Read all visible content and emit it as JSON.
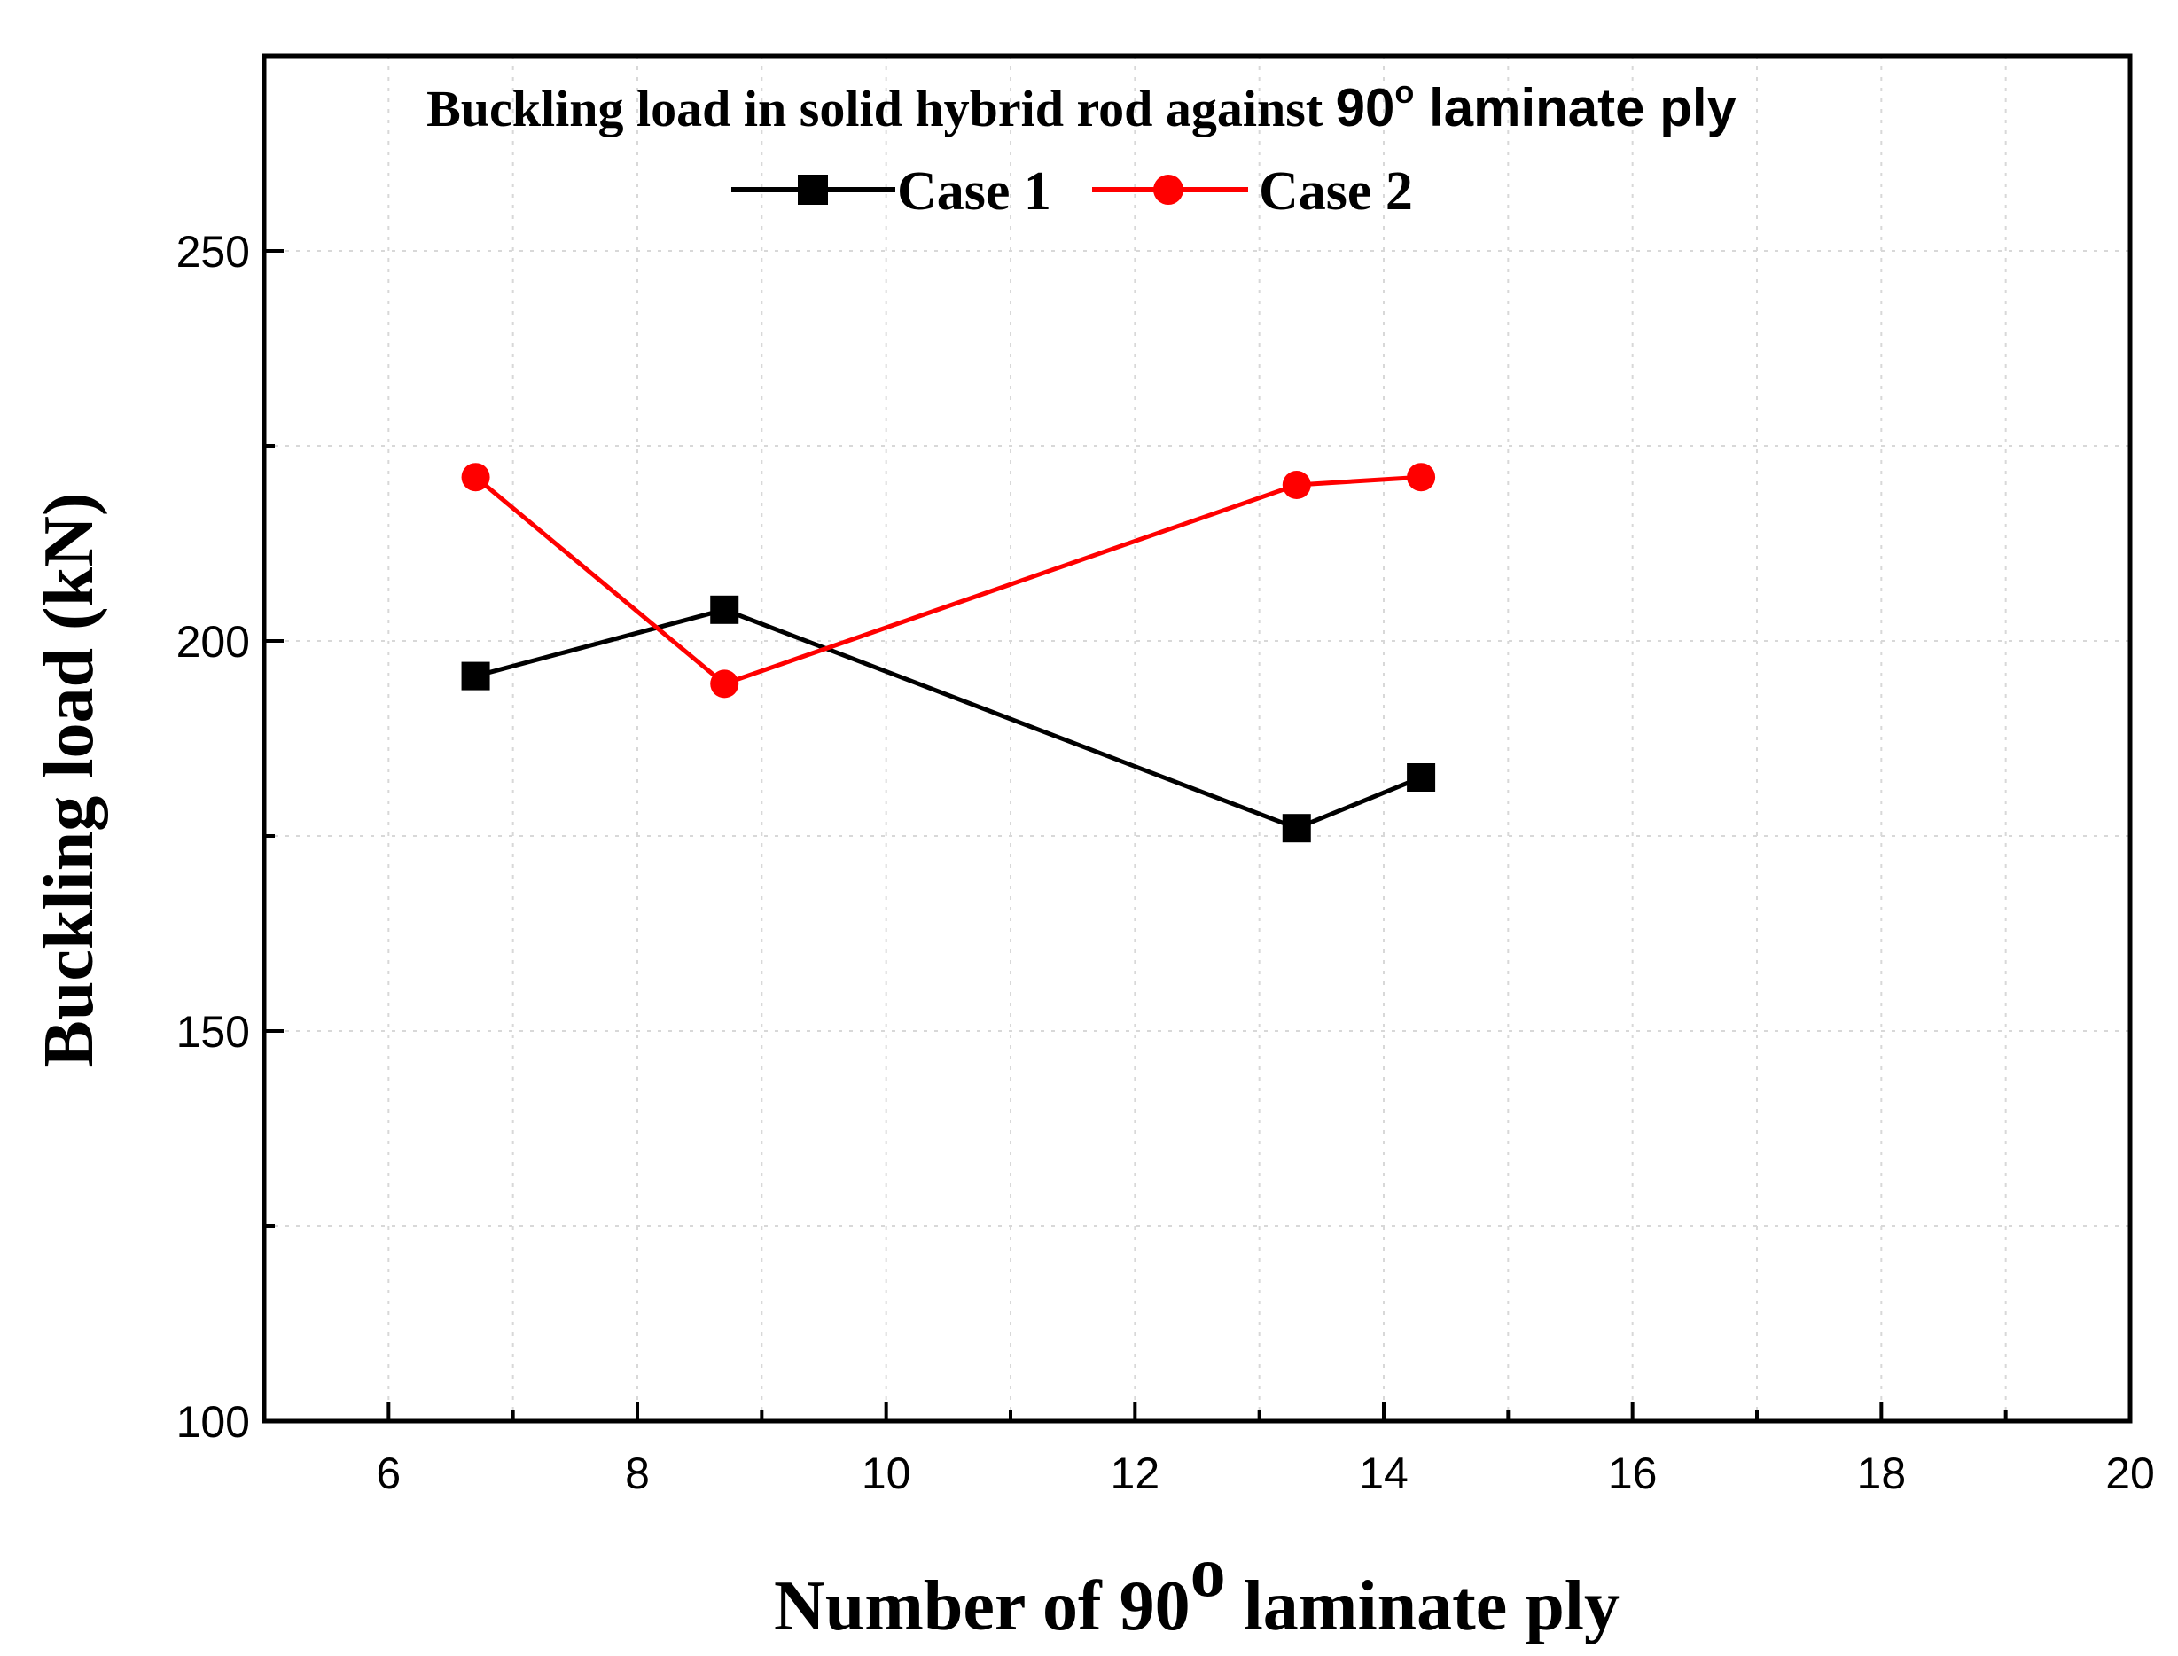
{
  "chart_data": {
    "type": "line",
    "title": {
      "prefix": "Buckling load in solid hybrid rod against ",
      "degree_number": "90",
      "degree_symbol": "o",
      "suffix": " laminate ply"
    },
    "xlabel": {
      "prefix": "Number of ",
      "degree_number": "90",
      "degree_symbol": "o",
      "suffix": " laminate ply"
    },
    "ylabel": "Buckling load (kN)",
    "xlim": [
      5,
      20
    ],
    "ylim": [
      100,
      275
    ],
    "x_ticks": [
      6,
      8,
      10,
      12,
      14,
      16,
      18,
      20
    ],
    "x_tick_labels": [
      "6",
      "8",
      "10",
      "12",
      "14",
      "16",
      "18",
      "20"
    ],
    "x_minor_ticks": [
      5,
      7,
      9,
      11,
      13,
      15,
      17,
      19
    ],
    "y_ticks": [
      100,
      150,
      200,
      250
    ],
    "y_tick_labels": [
      "100",
      "150",
      "200",
      "250"
    ],
    "y_minor_ticks": [
      125,
      175,
      225,
      275
    ],
    "grid": true,
    "legend_position": "top-center",
    "series": [
      {
        "name": "Case 1",
        "color": "#000000",
        "marker": "square",
        "x": [
          6.7,
          8.7,
          13.3,
          14.3
        ],
        "y": [
          195.5,
          204,
          176,
          182.5
        ]
      },
      {
        "name": "Case 2",
        "color": "#ff0000",
        "marker": "circle",
        "x": [
          6.7,
          8.7,
          13.3,
          14.3
        ],
        "y": [
          221,
          194.5,
          220,
          221
        ]
      }
    ]
  }
}
